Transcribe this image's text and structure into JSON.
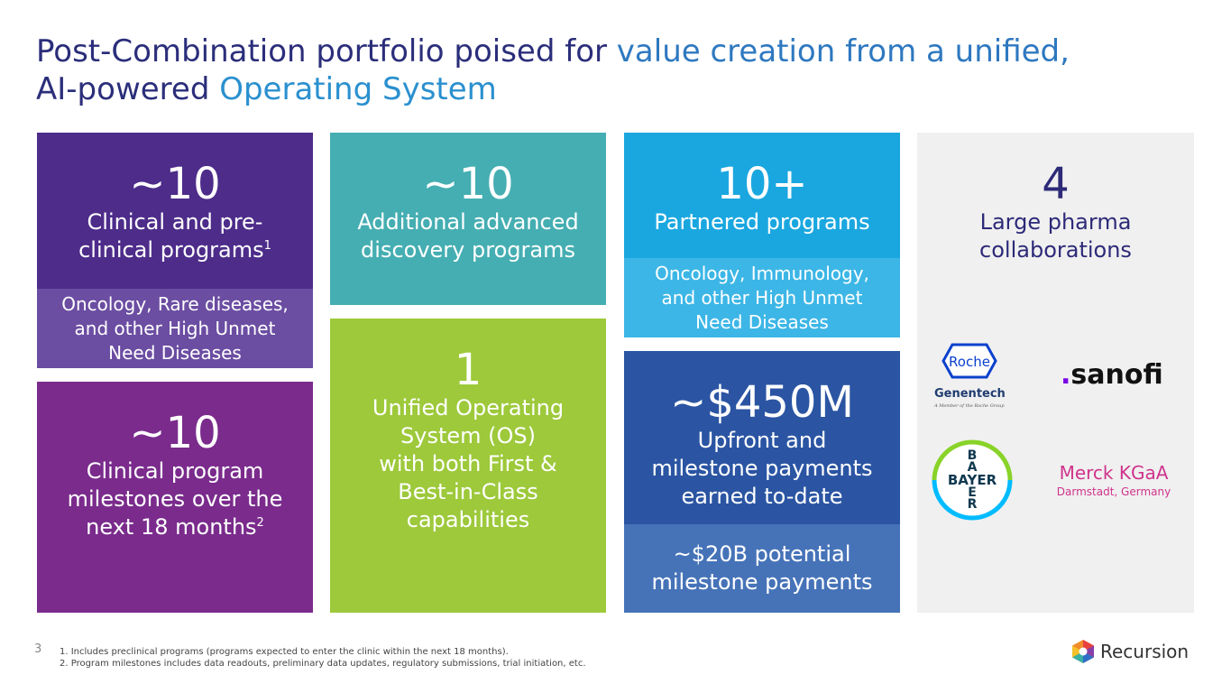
{
  "title": {
    "part1": "Post-Combination portfolio poised for ",
    "part2": "value creation from a unified,",
    "part3": "AI-powered ",
    "part4": "Operating System"
  },
  "boxes": {
    "clinical": {
      "big": "~10",
      "label1": "Clinical and pre-",
      "label2": "clinical programs",
      "sup": "1",
      "sub1": "Oncology, Rare diseases,",
      "sub2": "and other High Unmet",
      "sub3": "Need Diseases"
    },
    "milestones": {
      "big": "~10",
      "label1": "Clinical program",
      "label2": "milestones over the",
      "label3": "next 18 months",
      "sup": "2"
    },
    "discovery": {
      "big": "~10",
      "label1": "Additional advanced",
      "label2": "discovery programs"
    },
    "os": {
      "big": "1",
      "label1": "Unified Operating",
      "label2": "System (OS)",
      "label3": "with both First &",
      "label4": "Best-in-Class",
      "label5": "capabilities"
    },
    "partnered": {
      "big": "10+",
      "label1": "Partnered programs",
      "sub1": "Oncology, Immunology,",
      "sub2": "and other High Unmet",
      "sub3": "Need Diseases"
    },
    "payments": {
      "big": "~$450M",
      "label1": "Upfront and",
      "label2": "milestone payments",
      "label3": "earned to-date",
      "sub1": "~$20B potential",
      "sub2": "milestone payments"
    },
    "pharma": {
      "big": "4",
      "label1": "Large pharma",
      "label2": "collaborations"
    }
  },
  "logos": {
    "roche": "Roche",
    "genentech": "Genentech",
    "genentech_tag": "A Member of the Roche Group",
    "sanofi": "sanofi",
    "bayer_v": [
      "B",
      "A",
      "Y",
      "E",
      "R"
    ],
    "bayer_h": "BAYER",
    "merck1": "Merck KGaA",
    "merck2": "Darmstadt, Germany"
  },
  "footer": {
    "page": "3",
    "note1": "1.  Includes preclinical programs (programs expected to enter the clinic within the next 18 months).",
    "note2": "2.  Program milestones includes data readouts, preliminary data updates, regulatory submissions, trial initiation, etc.",
    "brand": "Recursion"
  },
  "colors": {
    "purple_dark": "#4d2c8a",
    "purple_sub": "#6b4da2",
    "magenta": "#7a2b8c",
    "teal": "#45aeb2",
    "lime": "#9dc93b",
    "sky": "#1aa7e0",
    "sky_sub": "#3cb6e6",
    "navy": "#2b55a3",
    "navy_sub": "#4673b8",
    "grey": "#f0f0f0"
  }
}
